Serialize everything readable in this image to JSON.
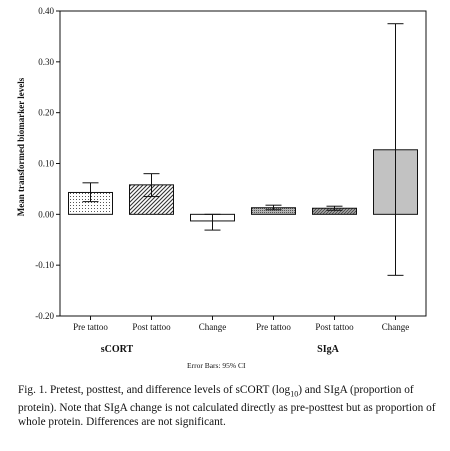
{
  "chart_data": {
    "type": "bar",
    "ylabel": "Mean transformed biomarker levels",
    "ylim": [
      -0.2,
      0.4
    ],
    "yticks": [
      -0.2,
      -0.1,
      0.0,
      0.1,
      0.2,
      0.3,
      0.4
    ],
    "ytick_labels": [
      "-0.20",
      "-0.10",
      "0.00",
      "0.10",
      "0.20",
      "0.30",
      "0.40"
    ],
    "categories": [
      "Pre tattoo",
      "Post tattoo",
      "Change",
      "Pre tattoo",
      "Post tattoo",
      "Change"
    ],
    "groups": [
      {
        "label": "sCORT",
        "category_indices": [
          0,
          1,
          2
        ]
      },
      {
        "label": "SIgA",
        "category_indices": [
          3,
          4,
          5
        ]
      }
    ],
    "series": [
      {
        "values": [
          0.043,
          0.058,
          -0.013,
          0.013,
          0.012,
          0.127
        ],
        "ci_low": [
          0.025,
          0.035,
          -0.031,
          0.009,
          0.008,
          -0.12
        ],
        "ci_high": [
          0.062,
          0.08,
          0.0,
          0.018,
          0.016,
          0.375
        ],
        "fills": [
          "dotted",
          "hatched",
          "white",
          "dark-dotted",
          "dark-hatched",
          "gray"
        ]
      }
    ],
    "error_bar_note": "Error Bars: 95% CI",
    "grid": false
  },
  "caption": {
    "p1": "Fig. 1.   Pretest, posttest, and difference levels of sCORT (log",
    "sub": "10",
    "p2": ") and SIgA (proportion of protein). Note that SIgA change is not calculated directly as pre-posttest but as proportion of whole protein. Differences are not significant."
  },
  "colors": {
    "axis": "#111111",
    "gray_fill": "#c2c2c2",
    "dark_fill": "#9a9a9a"
  }
}
